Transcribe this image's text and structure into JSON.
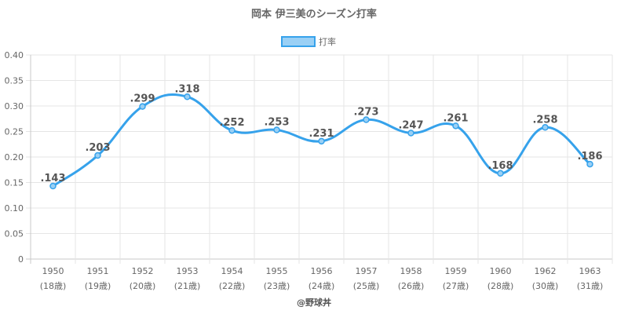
{
  "chart_data": {
    "type": "line",
    "title": "岡本 伊三美のシーズン打率",
    "legend": {
      "label": "打率",
      "position": "top"
    },
    "categories": [
      "1950",
      "1951",
      "1952",
      "1953",
      "1954",
      "1955",
      "1956",
      "1957",
      "1958",
      "1959",
      "1960",
      "1962",
      "1963"
    ],
    "category_sublabels": [
      "(18歳)",
      "(19歳)",
      "(20歳)",
      "(21歳)",
      "(22歳)",
      "(23歳)",
      "(24歳)",
      "(25歳)",
      "(26歳)",
      "(27歳)",
      "(28歳)",
      "(30歳)",
      "(31歳)"
    ],
    "series": [
      {
        "name": "打率",
        "values": [
          0.143,
          0.203,
          0.299,
          0.318,
          0.252,
          0.253,
          0.231,
          0.273,
          0.247,
          0.261,
          0.168,
          0.258,
          0.186
        ],
        "labels": [
          ".143",
          ".203",
          ".299",
          ".318",
          ".252",
          ".253",
          ".231",
          ".273",
          ".247",
          ".261",
          ".168",
          ".258",
          ".186"
        ]
      }
    ],
    "y_ticks": [
      "0",
      "0.05",
      "0.10",
      "0.15",
      "0.20",
      "0.25",
      "0.30",
      "0.35",
      "0.40"
    ],
    "ylim": [
      0,
      0.4
    ],
    "grid": true,
    "colors": {
      "line": "#36a2eb",
      "fill": "#9ad0f5",
      "grid": "#e5e5e5",
      "axis": "#c8c8c8"
    }
  },
  "credit": "@野球丼"
}
